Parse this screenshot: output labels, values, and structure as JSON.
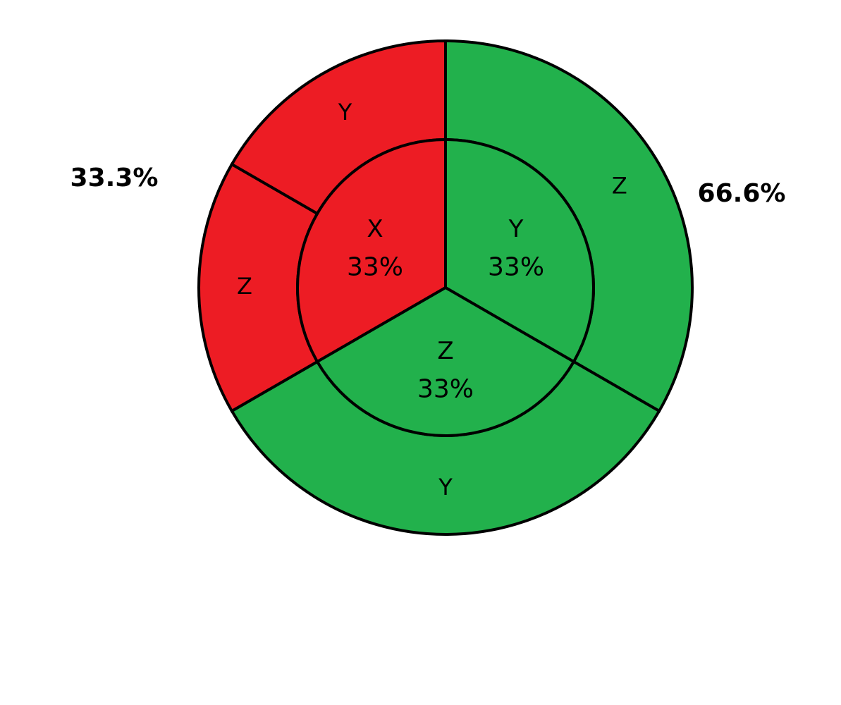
{
  "chart_data": {
    "type": "pie",
    "variant": "nested-donut",
    "title": "",
    "colors": {
      "red": "#ED1C24",
      "green": "#22B14C",
      "stroke": "#000000"
    },
    "inner_ring": [
      {
        "label": "X",
        "value_label": "33%",
        "value": 33.3,
        "color": "#ED1C24"
      },
      {
        "label": "Y",
        "value_label": "33%",
        "value": 33.3,
        "color": "#22B14C"
      },
      {
        "label": "Z",
        "value_label": "33%",
        "value": 33.3,
        "color": "#22B14C"
      }
    ],
    "outer_ring": [
      {
        "label": "Z",
        "value": 33.3,
        "color": "#22B14C"
      },
      {
        "label": "Y",
        "value": 33.3,
        "color": "#22B14C"
      },
      {
        "label": "Z",
        "value": 16.65,
        "color": "#ED1C24"
      },
      {
        "label": "Y",
        "value": 16.65,
        "color": "#ED1C24"
      }
    ],
    "group_labels": [
      {
        "text": "33.3%",
        "group": "red"
      },
      {
        "text": "66.6%",
        "group": "green"
      }
    ]
  }
}
